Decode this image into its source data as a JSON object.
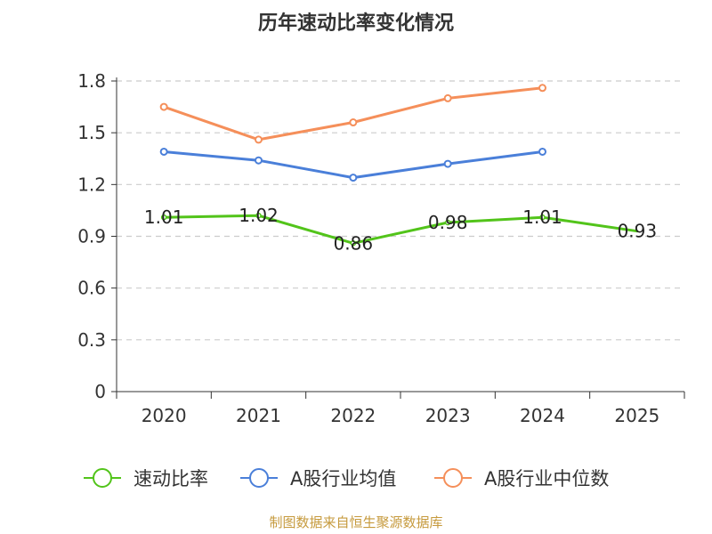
{
  "source": "制图数据来自恒生聚源数据库",
  "chart_data": {
    "type": "line",
    "title": "历年速动比率变化情况",
    "xlabel": "",
    "ylabel": "",
    "categories": [
      "2020",
      "2021",
      "2022",
      "2023",
      "2024",
      "2025"
    ],
    "ylim": [
      0,
      1.8
    ],
    "yticks": [
      "0",
      "0.3",
      "0.6",
      "0.9",
      "1.2",
      "1.5",
      "1.8"
    ],
    "grid": true,
    "legend_position": "bottom",
    "series": [
      {
        "name": "速动比率",
        "color": "#52c41a",
        "values": [
          1.01,
          1.02,
          0.86,
          0.98,
          1.01,
          0.93
        ],
        "labels": [
          "1.01",
          "1.02",
          "0.86",
          "0.98",
          "1.01",
          "0.93"
        ],
        "show_labels": true
      },
      {
        "name": "A股行业均值",
        "color": "#4a7fd9",
        "values": [
          1.39,
          1.34,
          1.24,
          1.32,
          1.39,
          null
        ],
        "show_labels": false
      },
      {
        "name": "A股行业中位数",
        "color": "#f58f5a",
        "values": [
          1.65,
          1.46,
          1.56,
          1.7,
          1.76,
          null
        ],
        "show_labels": false
      }
    ]
  }
}
